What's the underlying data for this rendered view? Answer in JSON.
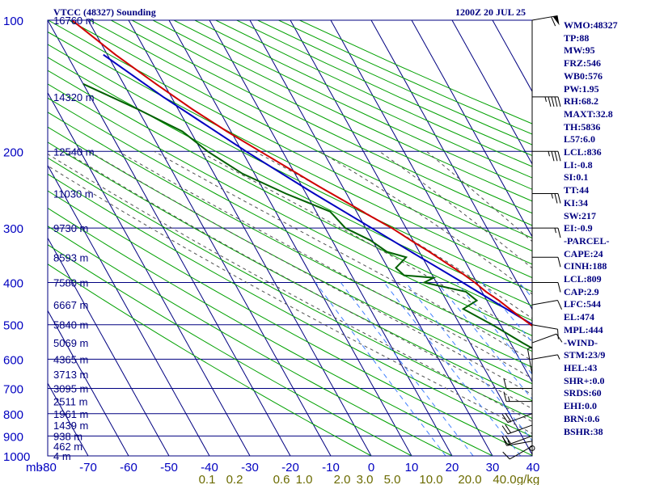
{
  "header": {
    "title": "VTCC (48327) Sounding",
    "datetime": "1200Z 20 JUL 25"
  },
  "indices": [
    "WMO:48327",
    "TP:88",
    "MW:95",
    "FRZ:546",
    "WB0:576",
    "PW:1.95",
    "RH:68.2",
    "MAXT:32.8",
    "TH:5836",
    "L57:6.0",
    "LCL:836",
    "LI:-0.8",
    "SI:0.1",
    "TT:44",
    "KI:34",
    "SW:217",
    "EI:-0.9",
    "-PARCEL-",
    "CAPE:24",
    "CINH:188",
    "LCL:809",
    "CAP:2.9",
    "LFC:544",
    "EL:474",
    "MPL:444",
    "-WIND-",
    "STM:23/9",
    "HEL:43",
    "SHR+:0.0",
    "SRDS:60",
    "EHI:0.0",
    "BRN:0.6",
    "BSHR:38"
  ],
  "colors": {
    "frame": "#000080",
    "text": "#000080",
    "axis_text": "#0000c0",
    "dry_adiabat": "#00a000",
    "moist_adiabat": "#505050",
    "mixing_ratio": "#4080ff",
    "temperature": "#d00000",
    "dewpoint": "#006000",
    "parcel": "#0000c0",
    "mixing_label": "#6b6b00"
  },
  "chart_data": {
    "type": "skew-t",
    "pressure_unit": "mb",
    "ylim": [
      1000,
      100
    ],
    "xlim": [
      -80,
      40
    ],
    "pressure_ticks": [
      100,
      200,
      300,
      400,
      500,
      600,
      700,
      800,
      900,
      1000
    ],
    "temperature_ticks": [
      -80,
      -70,
      -60,
      -50,
      -40,
      -30,
      -20,
      -10,
      0,
      10,
      20,
      30,
      40
    ],
    "mixing_ratio_labels": [
      "0.1",
      "0.2",
      "0.6",
      "1.0",
      "2.0",
      "3.0",
      "5.0",
      "10.0",
      "20.0",
      "40.0",
      "g/kg"
    ],
    "heights": [
      {
        "p": 100,
        "label": "16760 m"
      },
      {
        "p": 150,
        "label": "14320 m"
      },
      {
        "p": 200,
        "label": "12540 m"
      },
      {
        "p": 250,
        "label": "11030 m"
      },
      {
        "p": 300,
        "label": "9730 m"
      },
      {
        "p": 350,
        "label": "8593 m"
      },
      {
        "p": 400,
        "label": "7580 m"
      },
      {
        "p": 450,
        "label": "6667 m"
      },
      {
        "p": 500,
        "label": "5840 m"
      },
      {
        "p": 550,
        "label": "5069 m"
      },
      {
        "p": 600,
        "label": "4365 m"
      },
      {
        "p": 650,
        "label": "3713 m"
      },
      {
        "p": 700,
        "label": "3095 m"
      },
      {
        "p": 750,
        "label": "2511 m"
      },
      {
        "p": 800,
        "label": "1961 m"
      },
      {
        "p": 850,
        "label": "1439 m"
      },
      {
        "p": 900,
        "label": "938 m"
      },
      {
        "p": 950,
        "label": "462 m"
      },
      {
        "p": 1000,
        "label": "4 m"
      }
    ],
    "series": [
      {
        "name": "temperature",
        "points": [
          [
            960,
            31
          ],
          [
            925,
            26
          ],
          [
            900,
            23.5
          ],
          [
            870,
            21
          ],
          [
            850,
            20.5
          ],
          [
            820,
            18.5
          ],
          [
            800,
            17
          ],
          [
            780,
            16.5
          ],
          [
            760,
            16
          ],
          [
            740,
            14.5
          ],
          [
            720,
            12.5
          ],
          [
            700,
            11
          ],
          [
            680,
            9.5
          ],
          [
            660,
            8
          ],
          [
            640,
            7
          ],
          [
            620,
            6
          ],
          [
            600,
            5
          ],
          [
            580,
            3.5
          ],
          [
            560,
            2
          ],
          [
            540,
            0.5
          ],
          [
            520,
            -1
          ],
          [
            500,
            -2.5
          ],
          [
            480,
            -4
          ],
          [
            460,
            -5.5
          ],
          [
            440,
            -7
          ],
          [
            420,
            -9
          ],
          [
            400,
            -10.5
          ],
          [
            380,
            -12.5
          ],
          [
            360,
            -15
          ],
          [
            340,
            -17.5
          ],
          [
            320,
            -20.5
          ],
          [
            300,
            -23.5
          ],
          [
            280,
            -27.5
          ],
          [
            260,
            -31.5
          ],
          [
            240,
            -36
          ],
          [
            220,
            -40.5
          ],
          [
            200,
            -45.5
          ],
          [
            180,
            -51
          ],
          [
            160,
            -56.5
          ],
          [
            140,
            -62
          ],
          [
            120,
            -68
          ],
          [
            100,
            -74
          ]
        ]
      },
      {
        "name": "dewpoint",
        "points": [
          [
            960,
            21
          ],
          [
            925,
            20.5
          ],
          [
            900,
            19.5
          ],
          [
            850,
            16
          ],
          [
            800,
            14.5
          ],
          [
            750,
            10
          ],
          [
            700,
            7
          ],
          [
            650,
            3
          ],
          [
            600,
            -2
          ],
          [
            550,
            -7
          ],
          [
            500,
            -12
          ],
          [
            460,
            -17
          ],
          [
            440,
            -12.5
          ],
          [
            420,
            -14
          ],
          [
            400,
            -23
          ],
          [
            390,
            -20
          ],
          [
            385,
            -27
          ],
          [
            370,
            -28
          ],
          [
            350,
            -24
          ],
          [
            340,
            -28
          ],
          [
            320,
            -30.5
          ],
          [
            300,
            -35
          ],
          [
            275,
            -36.5
          ],
          [
            250,
            -45
          ],
          [
            225,
            -53
          ],
          [
            200,
            -58.5
          ],
          [
            180,
            -62
          ],
          [
            160,
            -70
          ],
          [
            140,
            -80
          ]
        ]
      },
      {
        "name": "parcel",
        "points": [
          [
            960,
            31
          ],
          [
            900,
            24.5
          ],
          [
            836,
            19.5
          ],
          [
            800,
            17.5
          ],
          [
            750,
            15
          ],
          [
            700,
            12
          ],
          [
            650,
            9.5
          ],
          [
            600,
            6
          ],
          [
            550,
            2
          ],
          [
            500,
            -2
          ],
          [
            450,
            -7.5
          ],
          [
            400,
            -13.5
          ],
          [
            350,
            -20.5
          ],
          [
            300,
            -28.5
          ],
          [
            250,
            -38
          ],
          [
            200,
            -49
          ],
          [
            150,
            -62
          ],
          [
            120,
            -71
          ]
        ]
      }
    ],
    "winds": [
      {
        "p": 100,
        "dir": 80,
        "spd": 60
      },
      {
        "p": 150,
        "dir": 90,
        "spd": 45
      },
      {
        "p": 200,
        "dir": 90,
        "spd": 35
      },
      {
        "p": 250,
        "dir": 90,
        "spd": 25
      },
      {
        "p": 300,
        "dir": 90,
        "spd": 15
      },
      {
        "p": 350,
        "dir": 90,
        "spd": 10
      },
      {
        "p": 400,
        "dir": 90,
        "spd": 10
      },
      {
        "p": 450,
        "dir": 80,
        "spd": 10
      },
      {
        "p": 500,
        "dir": 100,
        "spd": 10
      },
      {
        "p": 550,
        "dir": 70,
        "spd": 10
      },
      {
        "p": 600,
        "dir": 80,
        "spd": 5
      },
      {
        "p": 650,
        "dir": 350,
        "spd": 5
      },
      {
        "p": 700,
        "dir": 270,
        "spd": 10
      },
      {
        "p": 750,
        "dir": 270,
        "spd": 15
      },
      {
        "p": 800,
        "dir": 250,
        "spd": 20
      },
      {
        "p": 850,
        "dir": 250,
        "spd": 20
      },
      {
        "p": 900,
        "dir": 250,
        "spd": 20
      },
      {
        "p": 925,
        "dir": 260,
        "spd": 15
      },
      {
        "p": 950,
        "dir": 240,
        "spd": 10
      }
    ]
  }
}
